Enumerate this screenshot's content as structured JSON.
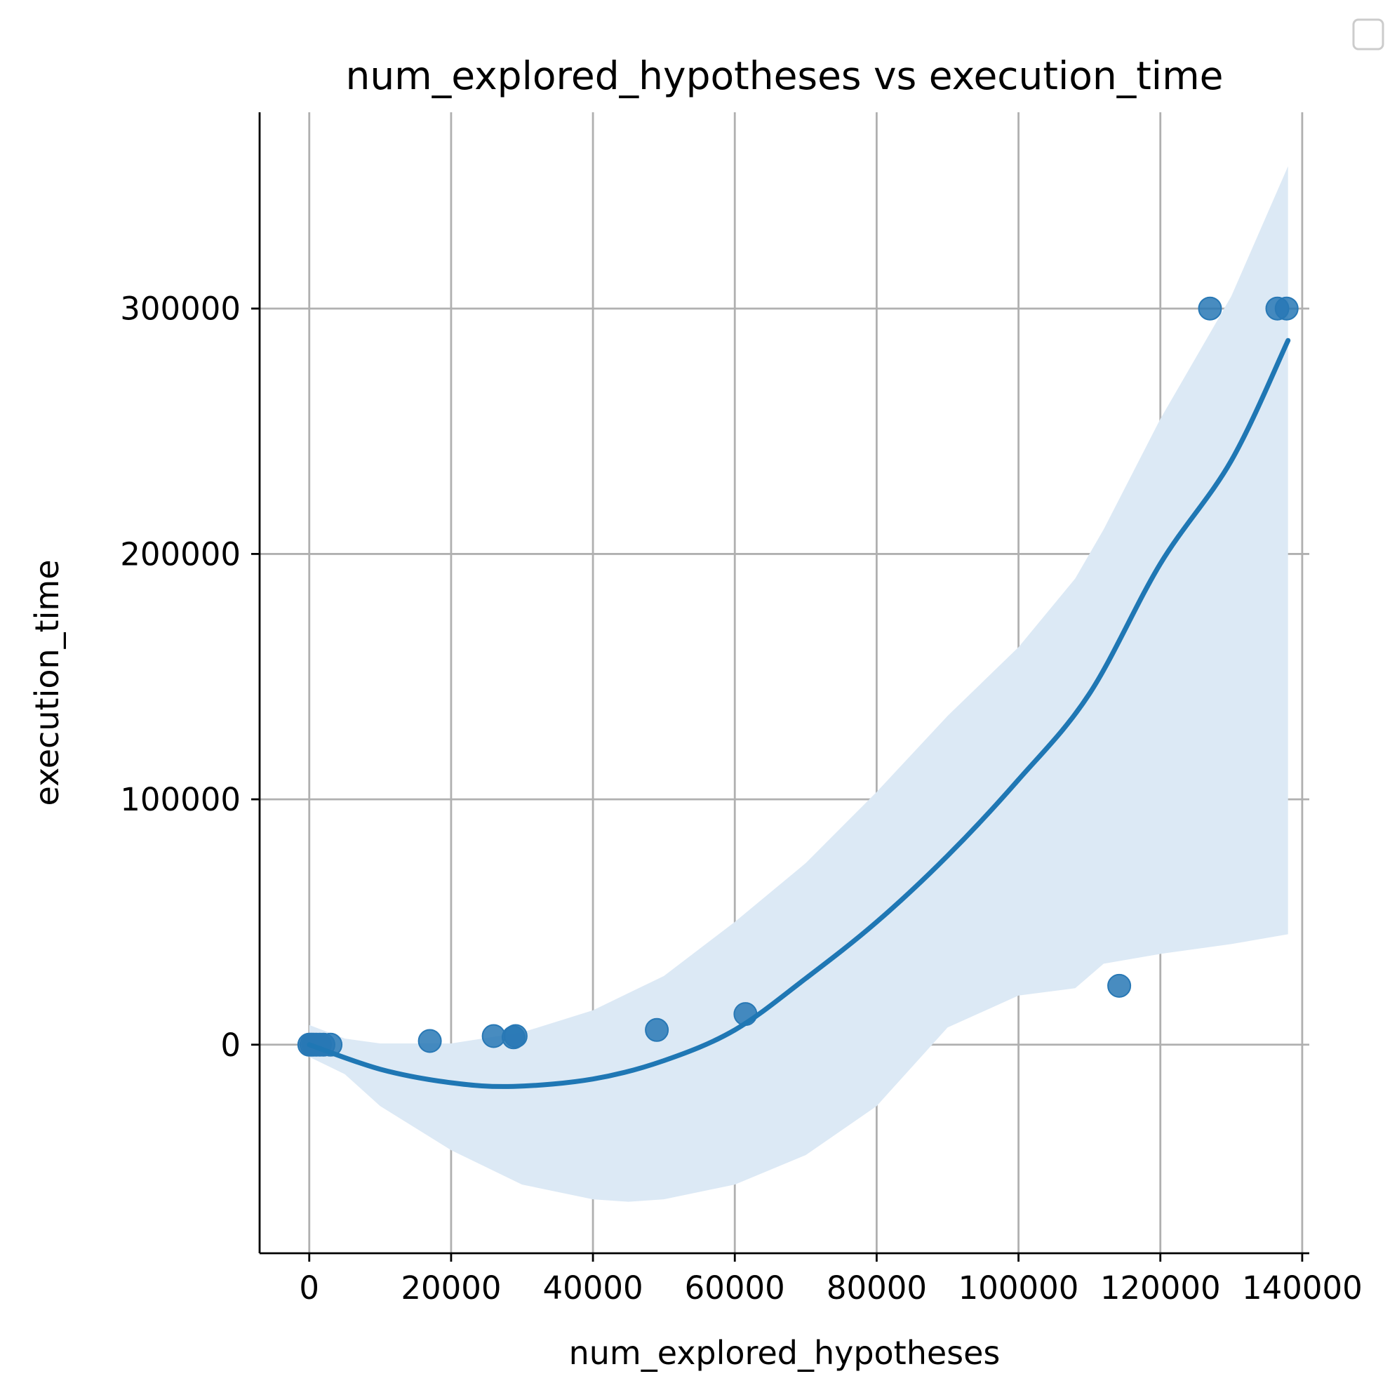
{
  "chart_data": {
    "type": "scatter",
    "title": "num_explored_hypotheses vs execution_time",
    "xlabel": "num_explored_hypotheses",
    "ylabel": "execution_time",
    "xlim": [
      -7000,
      141000
    ],
    "ylim": [
      -85000,
      380000
    ],
    "xticks": [
      0,
      20000,
      40000,
      60000,
      80000,
      100000,
      120000,
      140000
    ],
    "yticks": [
      0,
      100000,
      200000,
      300000
    ],
    "grid": true,
    "legend": "top-right (empty)",
    "colors": {
      "points": "#2878b5",
      "line": "#1f77b4",
      "band": "#dce9f5",
      "grid": "#b0b0b0"
    },
    "points": [
      {
        "x": 0,
        "y": 0
      },
      {
        "x": 300,
        "y": 0
      },
      {
        "x": 600,
        "y": 0
      },
      {
        "x": 1000,
        "y": 0
      },
      {
        "x": 1500,
        "y": 0
      },
      {
        "x": 2000,
        "y": 0
      },
      {
        "x": 3000,
        "y": 0
      },
      {
        "x": 17000,
        "y": 1500
      },
      {
        "x": 26000,
        "y": 3500
      },
      {
        "x": 28800,
        "y": 3000
      },
      {
        "x": 29100,
        "y": 3500
      },
      {
        "x": 49000,
        "y": 6000
      },
      {
        "x": 61500,
        "y": 12500
      },
      {
        "x": 114200,
        "y": 24000
      },
      {
        "x": 127000,
        "y": 300000
      },
      {
        "x": 136500,
        "y": 300000
      },
      {
        "x": 137800,
        "y": 300000
      }
    ],
    "fit_line": {
      "x": [
        0,
        10000,
        20000,
        28800,
        40000,
        50000,
        60000,
        70000,
        80000,
        90000,
        100000,
        110000,
        120000,
        130000,
        138000
      ],
      "y": [
        0,
        -10000,
        -15500,
        -17000,
        -14000,
        -6500,
        6000,
        27000,
        50000,
        77000,
        108000,
        143000,
        196000,
        238000,
        287000
      ]
    },
    "ci_band": {
      "x": [
        0,
        5000,
        10000,
        20000,
        30000,
        40000,
        45000,
        50000,
        60000,
        70000,
        80000,
        90000,
        100000,
        108000,
        112000,
        120000,
        130000,
        138000
      ],
      "upper": [
        8000,
        2500,
        500,
        500,
        5000,
        14000,
        21000,
        28000,
        50000,
        74000,
        103000,
        134000,
        162000,
        190000,
        210000,
        255000,
        305000,
        358000
      ],
      "lower": [
        -5000,
        -12000,
        -25000,
        -43000,
        -57000,
        -63000,
        -64000,
        -63000,
        -57000,
        -45000,
        -25000,
        7000,
        20000,
        23000,
        33000,
        37000,
        41000,
        45000
      ]
    }
  }
}
